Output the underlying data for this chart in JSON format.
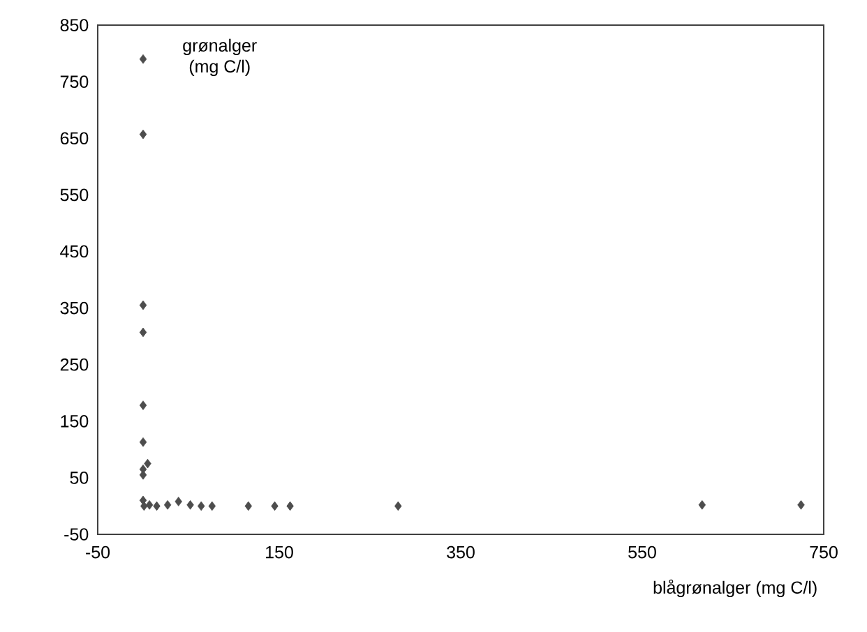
{
  "chart_data": {
    "type": "scatter",
    "ylabel": "grønalger (mg C/l)",
    "xlabel": "blågrønalger (mg C/l)",
    "xlim": [
      -50,
      750
    ],
    "xticks": [
      -50,
      150,
      350,
      550,
      750
    ],
    "ylim": [
      -50,
      850
    ],
    "yticks": [
      -50,
      50,
      150,
      250,
      350,
      450,
      550,
      650,
      750,
      850
    ],
    "marker": "diamond",
    "grid": false,
    "series": [
      {
        "color": "#4d4d4d",
        "x": [
          0,
          0,
          0,
          0,
          0,
          0,
          5,
          0,
          0,
          0,
          1,
          7,
          15,
          27,
          39,
          52,
          64,
          76,
          116,
          145,
          162,
          281,
          616,
          725
        ],
        "values": [
          790,
          657,
          355,
          307,
          178,
          113,
          75,
          65,
          55,
          10,
          0,
          2,
          0,
          2,
          8,
          2,
          0,
          0,
          0,
          0,
          0,
          0,
          2,
          2
        ]
      }
    ]
  }
}
